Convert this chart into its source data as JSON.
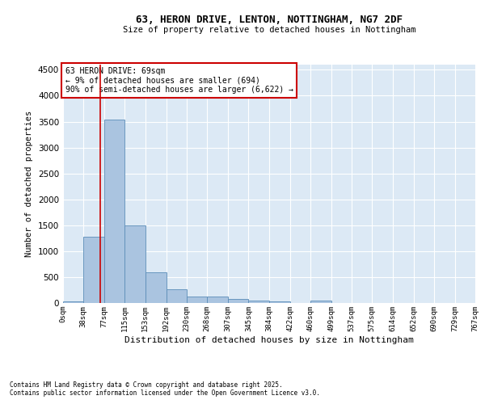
{
  "title_line1": "63, HERON DRIVE, LENTON, NOTTINGHAM, NG7 2DF",
  "title_line2": "Size of property relative to detached houses in Nottingham",
  "xlabel": "Distribution of detached houses by size in Nottingham",
  "ylabel": "Number of detached properties",
  "background_color": "#dce9f5",
  "bar_color": "#aac4e0",
  "bar_edge_color": "#5b8db8",
  "vline_x": 69,
  "vline_color": "#cc0000",
  "annotation_title": "63 HERON DRIVE: 69sqm",
  "annotation_line2": "← 9% of detached houses are smaller (694)",
  "annotation_line3": "90% of semi-detached houses are larger (6,622) →",
  "annotation_box_color": "#cc0000",
  "bin_edges": [
    0,
    38,
    77,
    115,
    153,
    192,
    230,
    268,
    307,
    345,
    384,
    422,
    460,
    499,
    537,
    575,
    614,
    652,
    690,
    729,
    767
  ],
  "bar_heights": [
    30,
    1280,
    3540,
    1500,
    600,
    260,
    130,
    120,
    75,
    40,
    30,
    0,
    40,
    0,
    0,
    0,
    0,
    0,
    0,
    0
  ],
  "ylim": [
    0,
    4600
  ],
  "yticks": [
    0,
    500,
    1000,
    1500,
    2000,
    2500,
    3000,
    3500,
    4000,
    4500
  ],
  "tick_labels": [
    "0sqm",
    "38sqm",
    "77sqm",
    "115sqm",
    "153sqm",
    "192sqm",
    "230sqm",
    "268sqm",
    "307sqm",
    "345sqm",
    "384sqm",
    "422sqm",
    "460sqm",
    "499sqm",
    "537sqm",
    "575sqm",
    "614sqm",
    "652sqm",
    "690sqm",
    "729sqm",
    "767sqm"
  ],
  "footnote_line1": "Contains HM Land Registry data © Crown copyright and database right 2025.",
  "footnote_line2": "Contains public sector information licensed under the Open Government Licence v3.0."
}
